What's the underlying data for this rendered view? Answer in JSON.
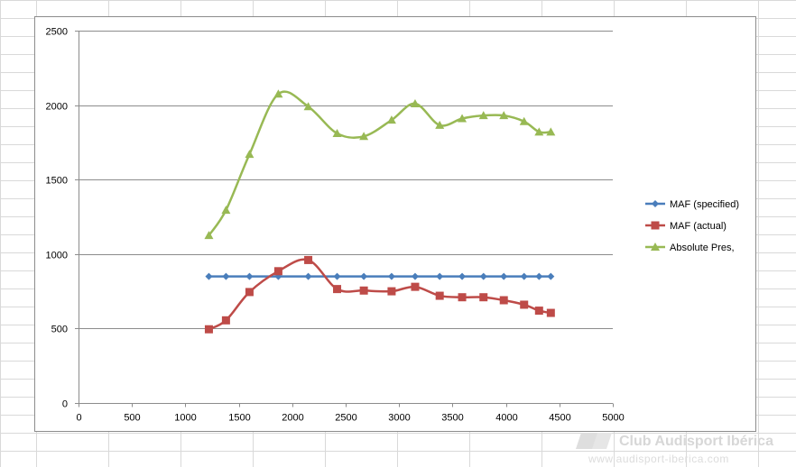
{
  "colors": {
    "sheet_grid": "#d9d9d9",
    "plot_gridline": "#8c8c8c",
    "axis": "#8c8c8c",
    "watermark": "#d7d7d7"
  },
  "watermark": {
    "title": "Club Audisport Ibérica",
    "url": "www.audisport-iberica.com"
  },
  "chart_data": {
    "type": "scatter",
    "title": "",
    "xlabel": "",
    "ylabel": "",
    "xlim": [
      0,
      5000
    ],
    "ylim": [
      0,
      2500
    ],
    "x_ticks": [
      0,
      500,
      1000,
      1500,
      2000,
      2500,
      3000,
      3500,
      4000,
      4500,
      5000
    ],
    "y_ticks": [
      0,
      500,
      1000,
      1500,
      2000,
      2500
    ],
    "y_grid": true,
    "x_grid": false,
    "smoothed_lines": true,
    "legend_position": "right",
    "series": [
      {
        "name": "MAF (specified)",
        "color": "#4a7ebb",
        "marker": "diamond",
        "x": [
          1220,
          1380,
          1600,
          1870,
          2150,
          2420,
          2670,
          2930,
          3150,
          3380,
          3590,
          3790,
          3980,
          4170,
          4310,
          4420
        ],
        "y": [
          850,
          850,
          850,
          850,
          850,
          850,
          850,
          850,
          850,
          850,
          850,
          850,
          850,
          850,
          850,
          850
        ]
      },
      {
        "name": "MAF (actual)",
        "color": "#be4b48",
        "marker": "square",
        "x": [
          1220,
          1380,
          1600,
          1870,
          2150,
          2420,
          2670,
          2930,
          3150,
          3380,
          3590,
          3790,
          3980,
          4170,
          4310,
          4420
        ],
        "y": [
          495,
          555,
          745,
          885,
          960,
          765,
          755,
          750,
          780,
          720,
          710,
          710,
          690,
          660,
          620,
          605
        ]
      },
      {
        "name": "Absolute Pres,",
        "color": "#98b954",
        "marker": "triangle",
        "x": [
          1220,
          1380,
          1600,
          1870,
          2150,
          2420,
          2670,
          2930,
          3150,
          3380,
          3590,
          3790,
          3980,
          4170,
          4310,
          4420
        ],
        "y": [
          1125,
          1295,
          1670,
          2075,
          1990,
          1810,
          1790,
          1900,
          2010,
          1865,
          1910,
          1930,
          1930,
          1890,
          1820,
          1820
        ]
      }
    ]
  }
}
